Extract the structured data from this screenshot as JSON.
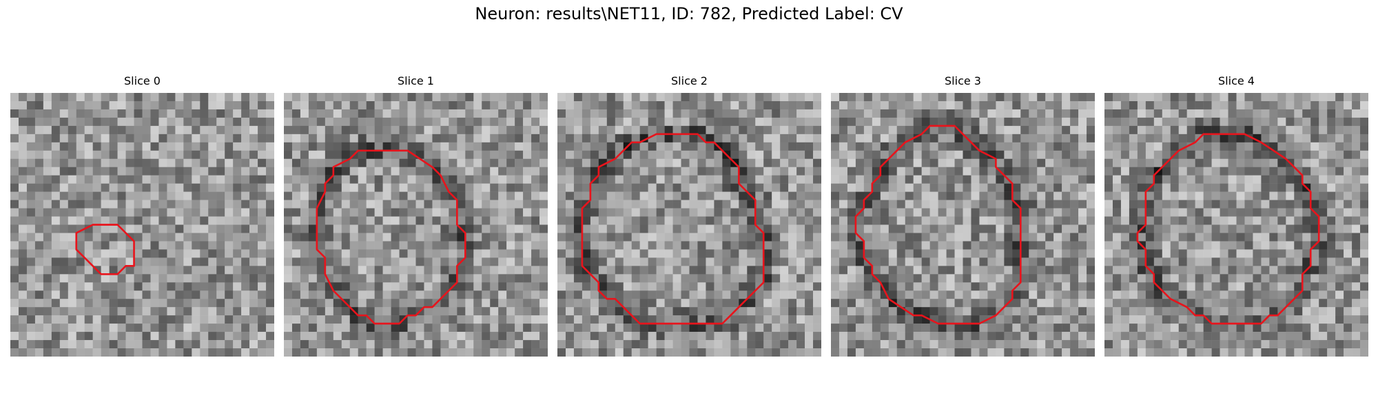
{
  "figure": {
    "title": "Neuron: results\\NET11, ID: 782, Predicted Label: CV",
    "contour_color": "#e8141c"
  },
  "panels": [
    {
      "title": "Slice 0",
      "contour": [
        [
          12,
          16
        ],
        [
          13,
          16
        ],
        [
          15,
          18
        ],
        [
          15,
          21
        ],
        [
          14,
          21
        ],
        [
          13,
          22
        ],
        [
          11,
          22
        ],
        [
          9,
          20
        ],
        [
          8,
          19
        ],
        [
          8,
          17
        ],
        [
          10,
          16
        ]
      ]
    },
    {
      "title": "Slice 1",
      "contour": [
        [
          11,
          7
        ],
        [
          15,
          7
        ],
        [
          18,
          9
        ],
        [
          19,
          10
        ],
        [
          20,
          12
        ],
        [
          21,
          13
        ],
        [
          21,
          16
        ],
        [
          22,
          17
        ],
        [
          22,
          20
        ],
        [
          21,
          21
        ],
        [
          21,
          23
        ],
        [
          20,
          24
        ],
        [
          19,
          25
        ],
        [
          18,
          26
        ],
        [
          17,
          26
        ],
        [
          16,
          27
        ],
        [
          15,
          27
        ],
        [
          14,
          28
        ],
        [
          11,
          28
        ],
        [
          10,
          27
        ],
        [
          9,
          27
        ],
        [
          7,
          25
        ],
        [
          6,
          24
        ],
        [
          5,
          22
        ],
        [
          5,
          20
        ],
        [
          4,
          19
        ],
        [
          4,
          14
        ],
        [
          5,
          12
        ],
        [
          5,
          11
        ],
        [
          6,
          10
        ],
        [
          6,
          9
        ],
        [
          8,
          8
        ],
        [
          9,
          7
        ]
      ]
    },
    {
      "title": "Slice 2",
      "contour": [
        [
          12,
          5
        ],
        [
          17,
          5
        ],
        [
          18,
          6
        ],
        [
          19,
          6
        ],
        [
          20,
          7
        ],
        [
          21,
          8
        ],
        [
          22,
          9
        ],
        [
          22,
          11
        ],
        [
          23,
          12
        ],
        [
          24,
          13
        ],
        [
          24,
          16
        ],
        [
          25,
          17
        ],
        [
          25,
          18
        ],
        [
          25,
          23
        ],
        [
          24,
          24
        ],
        [
          23,
          25
        ],
        [
          22,
          26
        ],
        [
          21,
          27
        ],
        [
          20,
          28
        ],
        [
          10,
          28
        ],
        [
          9,
          27
        ],
        [
          8,
          26
        ],
        [
          7,
          25
        ],
        [
          6,
          25
        ],
        [
          5,
          24
        ],
        [
          5,
          23
        ],
        [
          3,
          21
        ],
        [
          3,
          14
        ],
        [
          4,
          13
        ],
        [
          4,
          11
        ],
        [
          5,
          10
        ],
        [
          5,
          9
        ],
        [
          7,
          8
        ],
        [
          8,
          7
        ],
        [
          9,
          6
        ],
        [
          10,
          6
        ]
      ]
    },
    {
      "title": "Slice 3",
      "contour": [
        [
          12,
          4
        ],
        [
          15,
          4
        ],
        [
          17,
          6
        ],
        [
          18,
          7
        ],
        [
          20,
          8
        ],
        [
          20,
          9
        ],
        [
          21,
          10
        ],
        [
          22,
          11
        ],
        [
          22,
          13
        ],
        [
          23,
          14
        ],
        [
          23,
          23
        ],
        [
          22,
          24
        ],
        [
          22,
          25
        ],
        [
          21,
          26
        ],
        [
          20,
          27
        ],
        [
          18,
          28
        ],
        [
          13,
          28
        ],
        [
          11,
          27
        ],
        [
          10,
          27
        ],
        [
          7,
          25
        ],
        [
          6,
          23
        ],
        [
          5,
          22
        ],
        [
          5,
          21
        ],
        [
          4,
          20
        ],
        [
          4,
          18
        ],
        [
          3,
          17
        ],
        [
          3,
          15
        ],
        [
          4,
          14
        ],
        [
          4,
          13
        ],
        [
          5,
          12
        ],
        [
          5,
          11
        ],
        [
          6,
          10
        ],
        [
          6,
          9
        ],
        [
          7,
          8
        ],
        [
          8,
          7
        ],
        [
          9,
          6
        ],
        [
          11,
          5
        ]
      ]
    },
    {
      "title": "Slice 4",
      "contour": [
        [
          12,
          5
        ],
        [
          17,
          5
        ],
        [
          19,
          6
        ],
        [
          22,
          8
        ],
        [
          23,
          9
        ],
        [
          24,
          10
        ],
        [
          24,
          11
        ],
        [
          25,
          12
        ],
        [
          25,
          14
        ],
        [
          26,
          15
        ],
        [
          26,
          18
        ],
        [
          25,
          19
        ],
        [
          25,
          21
        ],
        [
          24,
          22
        ],
        [
          24,
          24
        ],
        [
          23,
          25
        ],
        [
          22,
          26
        ],
        [
          21,
          27
        ],
        [
          20,
          27
        ],
        [
          19,
          28
        ],
        [
          13,
          28
        ],
        [
          12,
          27
        ],
        [
          11,
          27
        ],
        [
          10,
          26
        ],
        [
          8,
          25
        ],
        [
          7,
          24
        ],
        [
          6,
          23
        ],
        [
          6,
          22
        ],
        [
          5,
          21
        ],
        [
          5,
          19
        ],
        [
          4,
          18
        ],
        [
          4,
          17
        ],
        [
          5,
          16
        ],
        [
          5,
          12
        ],
        [
          6,
          11
        ],
        [
          6,
          10
        ],
        [
          7,
          9
        ],
        [
          8,
          8
        ],
        [
          9,
          7
        ],
        [
          11,
          6
        ]
      ]
    }
  ]
}
